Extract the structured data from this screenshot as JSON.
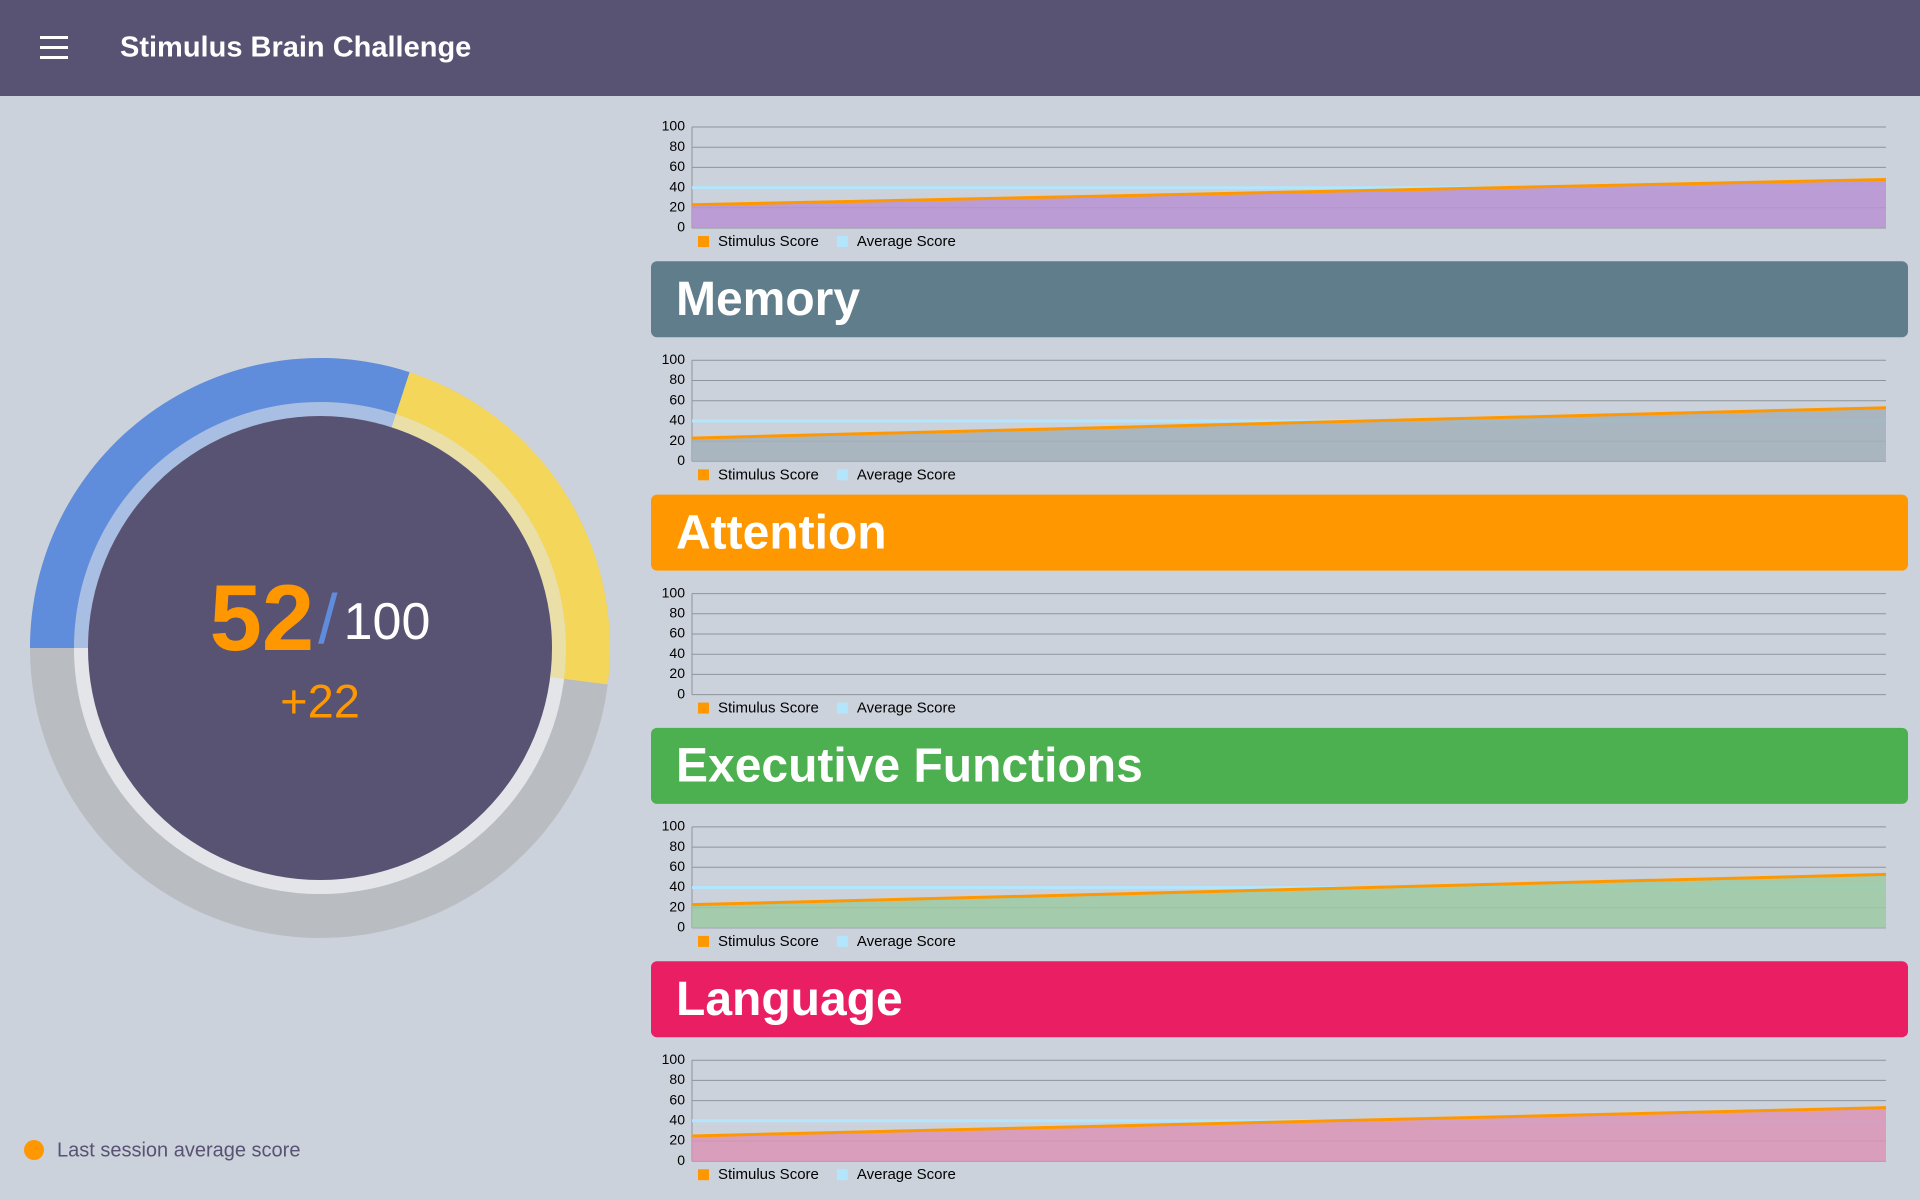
{
  "header": {
    "title": "Stimulus Brain Challenge"
  },
  "gauge": {
    "score": 52,
    "separator": "/",
    "max": 100,
    "delta": {
      "value": 22,
      "label": "+22"
    },
    "legend": "Last session average score",
    "previous_color": "#5f8ddb",
    "delta_color": "#f4d75a",
    "track_color": "#b9bcc1",
    "legend_color": "#ff9800"
  },
  "charts": [
    {
      "fill": "#b893d2",
      "ylim": [
        0,
        100
      ],
      "yticks": [
        0,
        20,
        40,
        60,
        80,
        100
      ],
      "series": [
        {
          "name": "Stimulus Score",
          "color": "#ff9800",
          "values": [
            23,
            48
          ]
        },
        {
          "name": "Average Score",
          "color": "#b3e5fc",
          "values": [
            40,
            40
          ]
        }
      ]
    },
    {
      "header": "Memory",
      "header_color": "#607d8b",
      "fill": "#a2b1bb",
      "ylim": [
        0,
        100
      ],
      "yticks": [
        0,
        20,
        40,
        60,
        80,
        100
      ],
      "series": [
        {
          "name": "Stimulus Score",
          "color": "#ff9800",
          "values": [
            23,
            53
          ]
        },
        {
          "name": "Average Score",
          "color": "#b3e5fc",
          "values": [
            40,
            40
          ]
        }
      ]
    },
    {
      "header": "Attention",
      "header_color": "#ff9800",
      "fill": "#f5c27a",
      "ylim": [
        0,
        100
      ],
      "yticks": [
        0,
        20,
        40,
        60,
        80,
        100
      ],
      "series": [
        {
          "name": "Stimulus Score",
          "color": "#ff9800",
          "values": []
        },
        {
          "name": "Average Score",
          "color": "#b3e5fc",
          "values": []
        }
      ]
    },
    {
      "header": "Executive Functions",
      "header_color": "#4caf50",
      "fill": "#9ccaa3",
      "ylim": [
        0,
        100
      ],
      "yticks": [
        0,
        20,
        40,
        60,
        80,
        100
      ],
      "series": [
        {
          "name": "Stimulus Score",
          "color": "#ff9800",
          "values": [
            23,
            53
          ]
        },
        {
          "name": "Average Score",
          "color": "#b3e5fc",
          "values": [
            40,
            40
          ]
        }
      ]
    },
    {
      "header": "Language",
      "header_color": "#e91e63",
      "fill": "#d995b6",
      "ylim": [
        0,
        100
      ],
      "yticks": [
        0,
        20,
        40,
        60,
        80,
        100
      ],
      "series": [
        {
          "name": "Stimulus Score",
          "color": "#ff9800",
          "values": [
            25,
            53
          ]
        },
        {
          "name": "Average Score",
          "color": "#b3e5fc",
          "values": [
            40,
            40
          ]
        }
      ]
    }
  ]
}
